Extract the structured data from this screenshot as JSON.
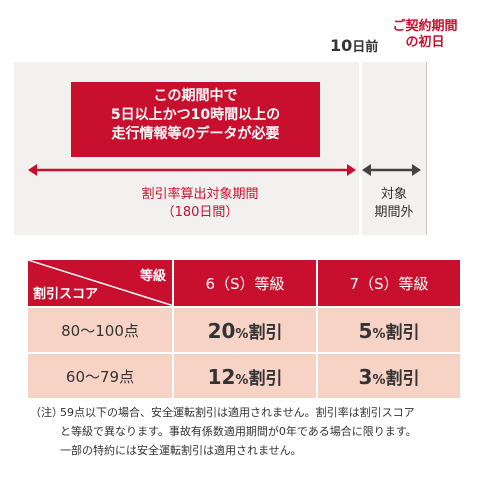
{
  "timeline": {
    "ten_days_num": "10",
    "ten_days_suffix": "日前",
    "contract_start_line1": "ご契約期間",
    "contract_start_line2": "の初日",
    "requirement_line1": "この期間中で",
    "requirement_line2": "5日以上かつ10時間以上の",
    "requirement_line3": "走行情報等のデータが必要",
    "period_line1": "割引率算出対象期間",
    "period_line2": "（180日間）",
    "outside_line1": "対象",
    "outside_line2": "期間外",
    "colors": {
      "accent": "#c8102e",
      "panel": "#f3f1ef",
      "cell": "#f7d3c6",
      "arrow_dark": "#444444"
    }
  },
  "table": {
    "corner_grade": "等級",
    "corner_score": "割引スコア",
    "columns": [
      "6（S）等級",
      "7（S）等級"
    ],
    "rows": [
      {
        "score": "80〜100点",
        "rates": [
          {
            "num": "20",
            "pct": "%",
            "text": "割引"
          },
          {
            "num": "5",
            "pct": "%",
            "text": "割引"
          }
        ]
      },
      {
        "score": "60〜79点",
        "rates": [
          {
            "num": "12",
            "pct": "%",
            "text": "割引"
          },
          {
            "num": "3",
            "pct": "%",
            "text": "割引"
          }
        ]
      }
    ]
  },
  "note": {
    "head": "（注）",
    "line1": "59点以下の場合、安全運転割引は適用されません。割引率は割引スコア",
    "line2": "と等級で異なります。事故有係数適用期間が0年である場合に限ります。",
    "line3": "一部の特約には安全運転割引は適用されません。"
  }
}
